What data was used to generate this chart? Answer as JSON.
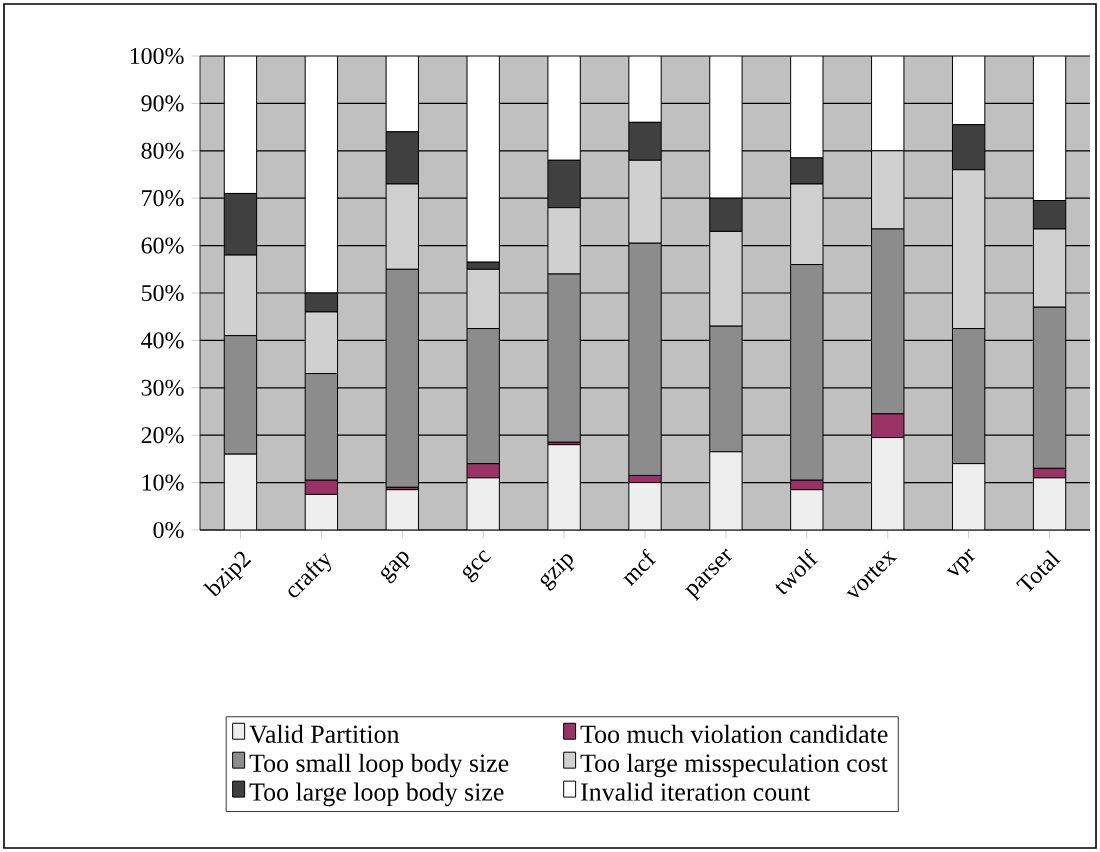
{
  "chart_data": {
    "type": "bar",
    "stacked": true,
    "grid": "y",
    "legend": "bottom",
    "categories": [
      "bzip2",
      "crafty",
      "gap",
      "gcc",
      "gzip",
      "mcf",
      "parser",
      "twolf",
      "vortex",
      "vpr",
      "Total"
    ],
    "ylim": [
      0,
      100
    ],
    "yticks": [
      {
        "value": 0,
        "label": "0%"
      },
      {
        "value": 10,
        "label": "10%"
      },
      {
        "value": 20,
        "label": "20%"
      },
      {
        "value": 30,
        "label": "30%"
      },
      {
        "value": 40,
        "label": "40%"
      },
      {
        "value": 50,
        "label": "50%"
      },
      {
        "value": 60,
        "label": "60%"
      },
      {
        "value": 70,
        "label": "70%"
      },
      {
        "value": 80,
        "label": "80%"
      },
      {
        "value": 90,
        "label": "90%"
      },
      {
        "value": 100,
        "label": "100%"
      }
    ],
    "series": [
      {
        "name": "Valid Partition",
        "color": "#eeeeee",
        "values": [
          16,
          7.5,
          8.5,
          11,
          18,
          10,
          16.5,
          8.5,
          19.5,
          14,
          11
        ]
      },
      {
        "name": "Too much violation candidate",
        "color": "#993366",
        "values": [
          0,
          3,
          0.5,
          3,
          0.5,
          1.5,
          0,
          2,
          5,
          0,
          2
        ]
      },
      {
        "name": "Too small loop body size",
        "color": "#8c8c8c",
        "values": [
          25,
          22.5,
          46,
          28.5,
          35.5,
          49,
          26.5,
          45.5,
          39,
          28.5,
          34
        ]
      },
      {
        "name": "Too large misspeculation cost",
        "color": "#d0d0d0",
        "values": [
          17,
          13,
          18,
          12.5,
          14,
          17.5,
          20,
          17,
          16.5,
          33.5,
          16.5
        ]
      },
      {
        "name": "Too large loop body size",
        "color": "#404040",
        "values": [
          13,
          4,
          11,
          1.5,
          10,
          8,
          7,
          5.5,
          0,
          9.5,
          6
        ]
      },
      {
        "name": "Invalid iteration count",
        "color": "#ffffff",
        "values": [
          29,
          50,
          16,
          43.5,
          22,
          14,
          30,
          21.5,
          20,
          14.5,
          30.5
        ]
      }
    ]
  }
}
